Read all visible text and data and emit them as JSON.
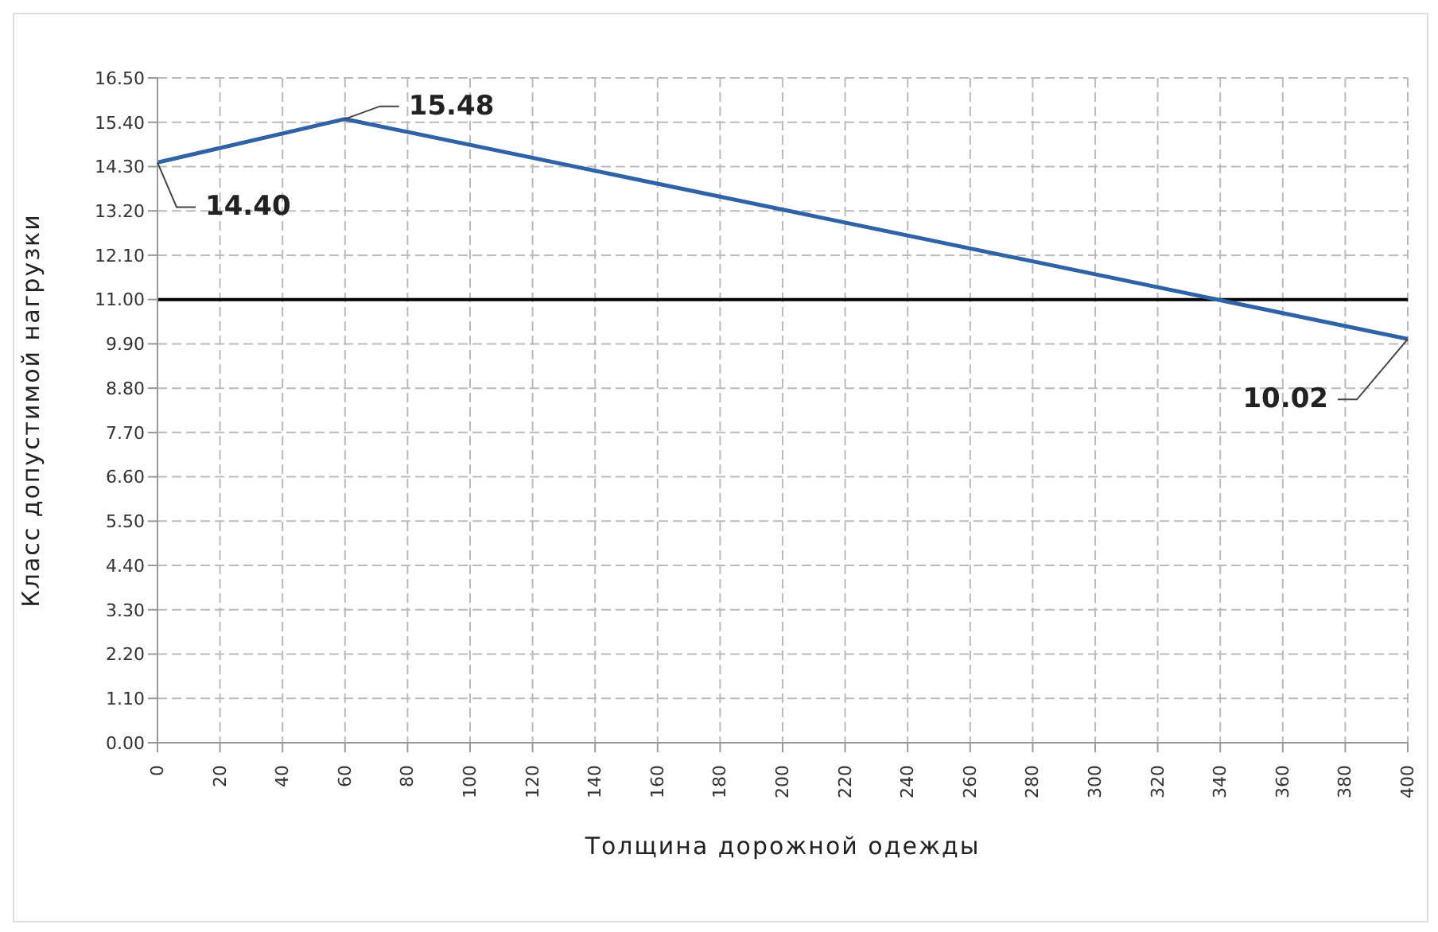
{
  "chart_data": {
    "type": "line",
    "xlabel": "Толщина дорожной одежды",
    "ylabel": "Класс допустимой нагрузки",
    "x": [
      0,
      60,
      400
    ],
    "series": [
      {
        "color": "#2f63a8",
        "values": [
          14.4,
          15.48,
          10.02
        ]
      }
    ],
    "xlim": [
      0,
      400
    ],
    "xticks": [
      0,
      20,
      40,
      60,
      80,
      100,
      120,
      140,
      160,
      180,
      200,
      220,
      240,
      260,
      280,
      300,
      320,
      340,
      360,
      380,
      400
    ],
    "ylim": [
      0,
      16.5
    ],
    "yticks": [
      {
        "value": 0,
        "label": "0.00"
      },
      {
        "value": 1.1,
        "label": "1.10"
      },
      {
        "value": 2.2,
        "label": "2.20"
      },
      {
        "value": 3.3,
        "label": "3.30"
      },
      {
        "value": 4.4,
        "label": "4.40"
      },
      {
        "value": 5.5,
        "label": "5.50"
      },
      {
        "value": 6.6,
        "label": "6.60"
      },
      {
        "value": 7.7,
        "label": "7.70"
      },
      {
        "value": 8.8,
        "label": "8.80"
      },
      {
        "value": 9.9,
        "label": "9.90"
      },
      {
        "value": 11,
        "label": "11.00"
      },
      {
        "value": 12.1,
        "label": "12.10"
      },
      {
        "value": 13.2,
        "label": "13.20"
      },
      {
        "value": 14.3,
        "label": "14.30"
      },
      {
        "value": 15.4,
        "label": "15.40"
      },
      {
        "value": 16.5,
        "label": "16.50"
      }
    ],
    "ref_lines": [
      {
        "axis": "y",
        "value": 11.0,
        "color": "#000000"
      }
    ],
    "annotations": [
      {
        "text": "14.40",
        "x": 0,
        "y": 14.4
      },
      {
        "text": "15.48",
        "x": 60,
        "y": 15.48
      },
      {
        "text": "10.02",
        "x": 400,
        "y": 10.02
      }
    ],
    "grid": true,
    "marker": "none",
    "line_style": "solid"
  }
}
